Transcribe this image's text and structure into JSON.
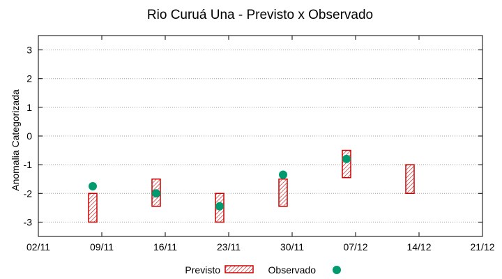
{
  "chart_data": {
    "type": "scatter",
    "title": "Rio Curuá Una - Previsto x Observado",
    "ylabel": "Anomalia Categorizada",
    "xlabel": "",
    "x_ticks": [
      "02/11",
      "09/11",
      "16/11",
      "23/11",
      "30/11",
      "07/12",
      "14/12",
      "21/12"
    ],
    "x_range": [
      "02/11",
      "21/12"
    ],
    "y_ticks": [
      3,
      2,
      1,
      0,
      -1,
      -2,
      -3
    ],
    "ylim": [
      -3.5,
      3.5
    ],
    "grid": true,
    "legend_position": "bottom",
    "series": [
      {
        "name": "Previsto",
        "kind": "range-box",
        "color": "#cc0000",
        "points": [
          {
            "date": "08/11",
            "low": -3.0,
            "high": -2.0
          },
          {
            "date": "15/11",
            "low": -2.45,
            "high": -1.5
          },
          {
            "date": "22/11",
            "low": -3.0,
            "high": -2.0
          },
          {
            "date": "29/11",
            "low": -2.45,
            "high": -1.5
          },
          {
            "date": "06/12",
            "low": -1.45,
            "high": -0.5
          },
          {
            "date": "13/12",
            "low": -2.0,
            "high": -1.0
          }
        ]
      },
      {
        "name": "Observado",
        "kind": "point",
        "color": "#009a6e",
        "points": [
          {
            "date": "08/11",
            "value": -1.75
          },
          {
            "date": "15/11",
            "value": -2.0
          },
          {
            "date": "22/11",
            "value": -2.45
          },
          {
            "date": "29/11",
            "value": -1.35
          },
          {
            "date": "06/12",
            "value": -0.8
          }
        ]
      }
    ]
  }
}
